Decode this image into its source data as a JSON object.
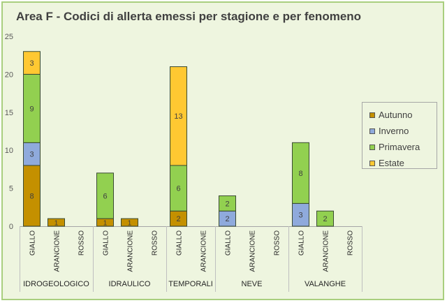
{
  "chart_data": {
    "type": "bar",
    "stacked": true,
    "title": "Area F - Codici di allerta emessi per stagione e per fenomeno",
    "ylim": [
      0,
      25
    ],
    "yticks": [
      0,
      5,
      10,
      15,
      20,
      25
    ],
    "grid": false,
    "legend_position": "right",
    "groups": [
      {
        "name": "IDROGEOLOGICO",
        "categories": [
          "GIALLO",
          "ARANCIONE",
          "ROSSO"
        ]
      },
      {
        "name": "IDRAULICO",
        "categories": [
          "GIALLO",
          "ARANCIONE",
          "ROSSO"
        ]
      },
      {
        "name": "TEMPORALI",
        "categories": [
          "GIALLO",
          "ARANCIONE"
        ]
      },
      {
        "name": "NEVE",
        "categories": [
          "GIALLO",
          "ARANCIONE",
          "ROSSO"
        ]
      },
      {
        "name": "VALANGHE",
        "categories": [
          "GIALLO",
          "ARANCIONE",
          "ROSSO"
        ]
      }
    ],
    "series": [
      {
        "name": "Autunno",
        "color": "#c49000",
        "values": [
          8,
          1,
          0,
          1,
          1,
          0,
          2,
          0,
          0,
          0,
          0,
          0,
          0,
          0
        ]
      },
      {
        "name": "Inverno",
        "color": "#8faadc",
        "values": [
          3,
          0,
          0,
          0,
          0,
          0,
          0,
          0,
          2,
          0,
          0,
          3,
          0,
          0
        ]
      },
      {
        "name": "Primavera",
        "color": "#92d050",
        "values": [
          9,
          0,
          0,
          6,
          0,
          0,
          6,
          0,
          2,
          0,
          0,
          8,
          2,
          0
        ]
      },
      {
        "name": "Estate",
        "color": "#ffc832",
        "values": [
          3,
          0,
          0,
          0,
          0,
          0,
          13,
          0,
          0,
          0,
          0,
          0,
          0,
          0
        ]
      }
    ]
  }
}
